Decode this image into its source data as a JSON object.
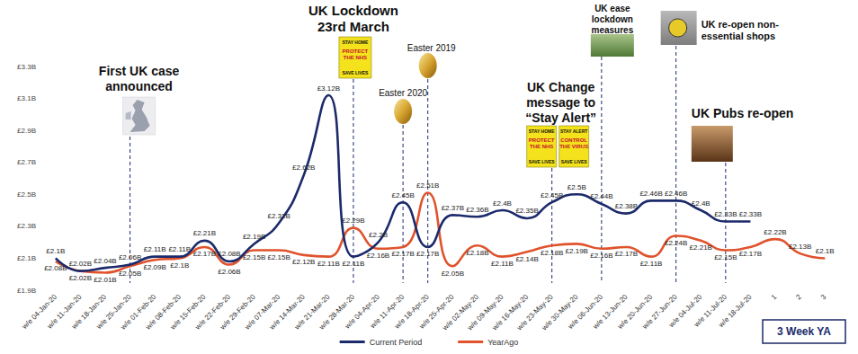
{
  "chart_data": {
    "type": "line",
    "categories": [
      "w/e 04-Jan-20",
      "w/e 11-Jan-20",
      "w/e 18-Jan-20",
      "w/e 25-Jan-20",
      "w/e 01-Feb-20",
      "w/e 08-Feb-20",
      "w/e 15-Feb-20",
      "w/e 22-Feb-20",
      "w/e 29-Feb-20",
      "w/e 07-Mar-20",
      "w/e 14-Mar-20",
      "w/e 21-Mar-20",
      "w/e 28-Mar-20",
      "w/e 04-Apr-20",
      "w/e 11-Apr-20",
      "w/e 18-Apr-20",
      "w/e 25-Apr-20",
      "w/e 02-May-20",
      "w/e 09-May-20",
      "w/e 16-May-20",
      "w/e 23-May-20",
      "w/e 30-May-20",
      "w/e 06-Jun-20",
      "w/e 13-Jun-20",
      "w/e 20-Jun-20",
      "w/e 27-Jun-20",
      "w/e 04-Jul-20",
      "w/e 11-Jul-20",
      "w/e 18-Jul-20",
      "1",
      "2",
      "3"
    ],
    "series": [
      {
        "name": "Current Period",
        "color": "#1b2a6b",
        "values": [
          2.1,
          2.02,
          2.04,
          2.06,
          2.11,
          2.11,
          2.21,
          2.08,
          2.19,
          2.32,
          2.62,
          3.12,
          2.11,
          2.2,
          2.45,
          2.17,
          2.37,
          2.36,
          2.4,
          2.35,
          2.45,
          2.5,
          2.44,
          2.38,
          2.46,
          2.46,
          2.4,
          2.33,
          2.33,
          null,
          null,
          null
        ],
        "value_labels": [
          "£2.1B",
          "£2.02B",
          "£2.04B",
          "£2.06B",
          "£2.11B",
          "£2.11B",
          "£2.21B",
          "£2.08B",
          "£2.19B",
          "£2.32B",
          "£2.62B",
          "£3.12B",
          "£2.11B",
          "£2.2B",
          "£2.45B",
          "£2.17B",
          "£2.37B",
          "£2.36B",
          "£2.4B",
          "£2.35B",
          "£2.45B",
          "£2.5B",
          "£2.44B",
          "£2.38B",
          "£2.46B",
          "£2.46B",
          "£2.4B",
          "£2.33B",
          "£2.33B",
          null,
          null,
          null
        ]
      },
      {
        "name": "YearAgo",
        "color": "#e0532c",
        "values": [
          2.08,
          2.02,
          2.01,
          2.05,
          2.09,
          2.1,
          2.17,
          2.06,
          2.15,
          2.15,
          2.12,
          2.11,
          2.29,
          2.16,
          2.17,
          2.51,
          2.05,
          2.18,
          2.11,
          2.14,
          2.18,
          2.19,
          2.16,
          2.17,
          2.11,
          2.24,
          2.21,
          2.15,
          2.17,
          2.22,
          2.13,
          2.1
        ],
        "value_labels": [
          "£2.08B",
          "£2.02B",
          "£2.01B",
          "£2.05B",
          "£2.09B",
          "£2.1B",
          "£2.17B",
          "£2.06B",
          "£2.15B",
          "£2.15B",
          "£2.12B",
          "£2.11B",
          "£2.29B",
          "£2.16B",
          "£2.17B",
          "£2.51B",
          "£2.05B",
          "£2.18B",
          "£2.11B",
          "£2.14B",
          "£2.18B",
          "£2.19B",
          "£2.16B",
          "£2.17B",
          "£2.11B",
          "£2.24B",
          "£2.21B",
          "£2.15B",
          "£2.17B",
          "£2.22B",
          "£2.13B",
          "£2.1B"
        ]
      }
    ],
    "ylim": [
      1.9,
      3.3
    ],
    "yticks": [
      {
        "value": 1.9,
        "label": "£1.9B"
      },
      {
        "value": 2.1,
        "label": "£2.1B"
      },
      {
        "value": 2.3,
        "label": "£2.3B"
      },
      {
        "value": 2.5,
        "label": "£2.5B"
      },
      {
        "value": 2.7,
        "label": "£2.7B"
      },
      {
        "value": 2.9,
        "label": "£2.9B"
      },
      {
        "value": 3.1,
        "label": "£3.1B"
      },
      {
        "value": 3.3,
        "label": "£3.3B"
      }
    ],
    "grid": false,
    "legend": "bottom",
    "data_labels": true,
    "marker": "none",
    "line_style": "smooth",
    "annotations": [
      {
        "lines": [
          "First UK case",
          "announced"
        ],
        "category": "w/e 25-Jan-20"
      },
      {
        "lines": [
          "UK Lockdown",
          "23rd March"
        ],
        "category": "w/e 28-Mar-20",
        "signs": [
          [
            "STAY HOME",
            "PROTECT",
            "THE NHS",
            "SAVE LIVES"
          ]
        ]
      },
      {
        "lines": [
          "Easter 2020"
        ],
        "category": "w/e 11-Apr-20"
      },
      {
        "lines": [
          "Easter 2019"
        ],
        "category": "w/e 18-Apr-20"
      },
      {
        "lines": [
          "UK Change",
          "message to",
          "“Stay Alert”"
        ],
        "category": "w/e 23-May-20",
        "signs": [
          [
            "STAY HOME",
            "PROTECT",
            "THE NHS",
            "SAVE LIVES"
          ],
          [
            "STAY ALERT",
            "CONTROL",
            "THE VIRUS",
            "SAVE LIVES"
          ]
        ]
      },
      {
        "lines": [
          "UK ease",
          "lockdown",
          "measures"
        ],
        "category": "w/e 06-Jun-20"
      },
      {
        "lines": [
          "UK re-open non-",
          "essential shops"
        ],
        "category": "w/e 27-Jun-20"
      },
      {
        "lines": [
          "UK Pubs re-open"
        ],
        "category": "w/e 11-Jul-20"
      }
    ],
    "footnote": "3 Week YA"
  }
}
